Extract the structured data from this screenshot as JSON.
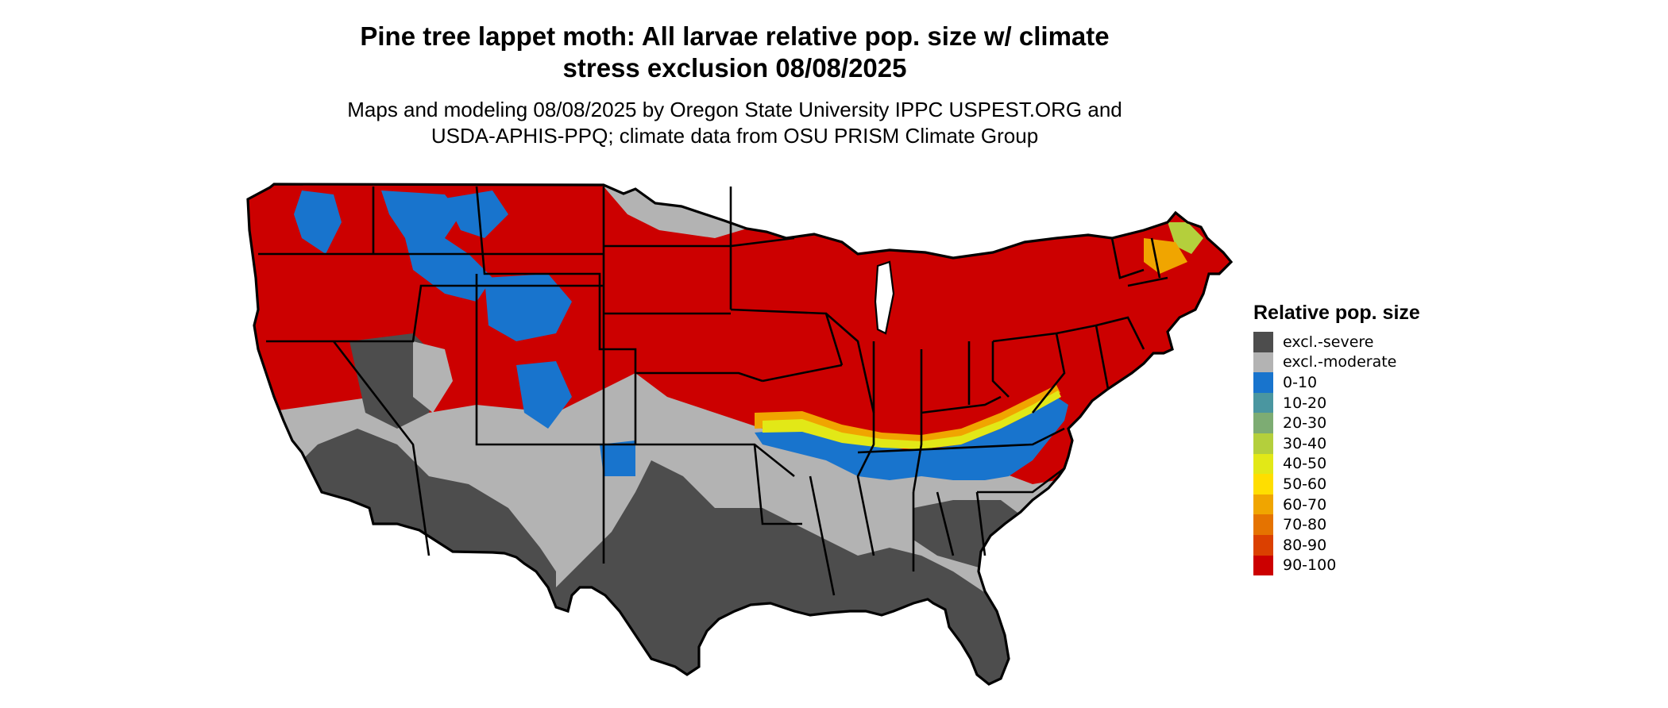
{
  "title_line1": "Pine tree lappet moth: All larvae relative pop. size w/ climate",
  "title_line2": "stress exclusion 08/08/2025",
  "subtitle_line1": "Maps and modeling 08/08/2025 by Oregon State University IPPC USPEST.ORG and",
  "subtitle_line2": "USDA-APHIS-PPQ; climate data from OSU PRISM Climate Group",
  "legend": {
    "title": "Relative pop. size",
    "items": [
      {
        "label": "excl.-severe",
        "color": "#4d4d4d"
      },
      {
        "label": "excl.-moderate",
        "color": "#b3b3b3"
      },
      {
        "label": "0-10",
        "color": "#1874cd"
      },
      {
        "label": "10-20",
        "color": "#4a96a0"
      },
      {
        "label": "20-30",
        "color": "#7dac73"
      },
      {
        "label": "30-40",
        "color": "#b4cf3c"
      },
      {
        "label": "40-50",
        "color": "#e2e817"
      },
      {
        "label": "50-60",
        "color": "#ffde00"
      },
      {
        "label": "60-70",
        "color": "#f0a500"
      },
      {
        "label": "70-80",
        "color": "#e57300"
      },
      {
        "label": "80-90",
        "color": "#db4000"
      },
      {
        "label": "90-100",
        "color": "#cc0000"
      }
    ]
  }
}
